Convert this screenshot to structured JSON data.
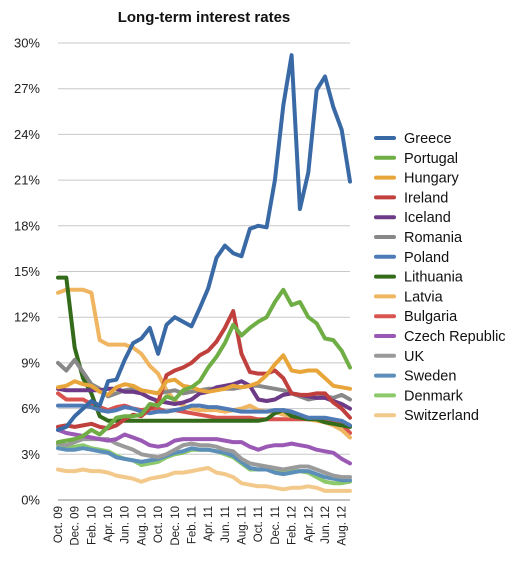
{
  "chart_data": {
    "type": "line",
    "title": "Long-term interest rates",
    "xlabel": "",
    "ylabel": "",
    "x": [
      "Oct. 09",
      "Nov. 09",
      "Dec. 09",
      "Jan. 10",
      "Feb. 10",
      "Mar. 10",
      "Apr. 10",
      "May 10",
      "Jun. 10",
      "Jul. 10",
      "Aug. 10",
      "Sep. 10",
      "Oct. 10",
      "Nov. 10",
      "Dec. 10",
      "Jan. 11",
      "Feb. 11",
      "Mar. 11",
      "Apr. 11",
      "May 11",
      "Jun. 11",
      "Jul. 11",
      "Aug. 11",
      "Sep. 11",
      "Oct. 11",
      "Nov. 11",
      "Dec. 11",
      "Jan. 12",
      "Feb. 12",
      "Mar. 12",
      "Apr. 12",
      "May 12",
      "Jun. 12",
      "Jul. 12",
      "Aug. 12",
      "Sep. 12"
    ],
    "x_tick_labels": [
      "Oct. 09",
      "Dec. 09",
      "Feb. 10",
      "Apr. 10",
      "Jun. 10",
      "Aug. 10",
      "Oct. 10",
      "Dec. 10",
      "Feb. 11",
      "Apr. 11",
      "Jun. 11",
      "Aug. 11",
      "Oct. 11",
      "Dec. 11",
      "Feb. 12",
      "Apr. 12",
      "Jun. 12",
      "Aug. 12"
    ],
    "y_tick_labels": [
      "0%",
      "3%",
      "6%",
      "9%",
      "12%",
      "15%",
      "18%",
      "21%",
      "24%",
      "27%",
      "30%"
    ],
    "ylim": [
      0,
      30
    ],
    "grid": "horizontal",
    "legend_position": "right",
    "series": [
      {
        "name": "Greece",
        "color": "#3a6aa6",
        "values": [
          4.6,
          4.8,
          5.5,
          6.0,
          6.5,
          6.2,
          7.8,
          7.9,
          9.2,
          10.3,
          10.6,
          11.3,
          9.6,
          11.5,
          12.0,
          11.7,
          11.4,
          12.6,
          13.9,
          15.9,
          16.7,
          16.2,
          16.0,
          17.8,
          18.0,
          17.9,
          21.0,
          25.9,
          29.2,
          19.1,
          21.5,
          26.9,
          27.8,
          25.8,
          24.3,
          20.9
        ]
      },
      {
        "name": "Portugal",
        "color": "#6fad45",
        "values": [
          3.8,
          3.9,
          4.0,
          4.2,
          4.6,
          4.3,
          4.8,
          5.4,
          5.5,
          5.5,
          5.6,
          6.3,
          6.2,
          6.8,
          6.6,
          7.2,
          7.4,
          7.8,
          8.7,
          9.4,
          10.3,
          11.5,
          10.8,
          11.3,
          11.7,
          12.0,
          13.0,
          13.8,
          12.8,
          13.0,
          12.0,
          11.6,
          10.6,
          10.5,
          9.8,
          8.7
        ]
      },
      {
        "name": "Hungary",
        "color": "#e8a53a",
        "values": [
          7.4,
          7.5,
          7.8,
          7.6,
          7.5,
          7.1,
          6.9,
          7.4,
          7.6,
          7.5,
          7.2,
          7.1,
          7.0,
          7.8,
          7.9,
          7.5,
          7.4,
          7.2,
          7.1,
          7.2,
          7.3,
          7.5,
          7.4,
          7.5,
          7.7,
          8.2,
          8.9,
          9.5,
          8.5,
          8.4,
          8.5,
          8.5,
          8.0,
          7.5,
          7.4,
          7.3
        ]
      },
      {
        "name": "Ireland",
        "color": "#c0403d",
        "values": [
          4.8,
          4.9,
          4.8,
          4.9,
          5.0,
          4.8,
          4.7,
          4.9,
          5.3,
          5.6,
          5.5,
          6.0,
          6.4,
          8.2,
          8.5,
          8.7,
          9.0,
          9.5,
          9.8,
          10.4,
          11.3,
          12.4,
          9.6,
          8.4,
          8.3,
          8.3,
          8.5,
          8.0,
          7.0,
          6.9,
          6.9,
          7.0,
          7.0,
          6.4,
          6.0,
          5.4
        ]
      },
      {
        "name": "Iceland",
        "color": "#6c3a87",
        "values": [
          7.3,
          7.2,
          7.2,
          7.2,
          7.2,
          7.2,
          7.3,
          7.3,
          7.1,
          7.1,
          7.0,
          6.7,
          6.5,
          6.4,
          6.3,
          6.4,
          6.6,
          7.0,
          7.1,
          7.4,
          7.5,
          7.6,
          7.8,
          7.5,
          6.6,
          6.5,
          6.6,
          6.9,
          7.0,
          6.9,
          6.8,
          6.7,
          6.7,
          6.5,
          6.3,
          6.0
        ]
      },
      {
        "name": "Romania",
        "color": "#888888",
        "values": [
          9.0,
          8.5,
          9.2,
          8.4,
          7.6,
          7.3,
          6.8,
          7.0,
          7.2,
          7.3,
          7.2,
          7.1,
          7.0,
          7.1,
          7.2,
          7.0,
          7.1,
          7.2,
          7.3,
          7.3,
          7.3,
          7.3,
          7.4,
          7.5,
          7.5,
          7.4,
          7.3,
          7.2,
          7.0,
          6.8,
          6.6,
          6.7,
          6.8,
          6.7,
          6.9,
          6.6
        ]
      },
      {
        "name": "Poland",
        "color": "#4e7bb6",
        "values": [
          6.2,
          6.2,
          6.2,
          6.2,
          6.1,
          5.9,
          5.8,
          5.9,
          6.1,
          6.0,
          5.8,
          5.7,
          5.8,
          5.8,
          5.9,
          6.0,
          6.2,
          6.2,
          6.1,
          6.1,
          6.0,
          5.9,
          5.8,
          5.8,
          5.8,
          5.8,
          5.9,
          5.9,
          5.8,
          5.6,
          5.4,
          5.4,
          5.4,
          5.3,
          5.2,
          4.9
        ]
      },
      {
        "name": "Lithuania",
        "color": "#336b1a",
        "values": [
          14.6,
          14.6,
          10.0,
          8.0,
          7.0,
          5.5,
          5.2,
          5.2,
          5.2,
          5.2,
          5.2,
          5.2,
          5.2,
          5.2,
          5.2,
          5.2,
          5.2,
          5.2,
          5.2,
          5.2,
          5.2,
          5.2,
          5.2,
          5.2,
          5.2,
          5.3,
          5.7,
          5.9,
          5.5,
          5.4,
          5.3,
          5.3,
          5.1,
          5.0,
          4.9,
          4.8
        ]
      },
      {
        "name": "Latvia",
        "color": "#f0b560",
        "values": [
          13.6,
          13.8,
          13.8,
          13.8,
          13.6,
          10.5,
          10.2,
          10.2,
          10.2,
          10.0,
          9.6,
          8.8,
          8.3,
          7.2,
          6.5,
          6.2,
          6.0,
          5.9,
          5.9,
          5.9,
          5.8,
          5.9,
          6.0,
          6.2,
          5.9,
          5.8,
          5.8,
          5.6,
          5.5,
          5.5,
          5.3,
          5.2,
          5.1,
          4.9,
          4.6,
          4.1
        ]
      },
      {
        "name": "Bulgaria",
        "color": "#d9534f",
        "values": [
          7.0,
          6.6,
          6.6,
          6.6,
          6.3,
          6.1,
          5.9,
          6.1,
          6.2,
          6.0,
          5.9,
          6.0,
          6.0,
          5.8,
          5.9,
          5.8,
          5.7,
          5.6,
          5.5,
          5.4,
          5.4,
          5.4,
          5.4,
          5.4,
          5.3,
          5.3,
          5.3,
          5.3,
          5.3,
          5.3,
          5.3,
          5.3,
          5.3,
          5.2,
          5.0,
          4.4
        ]
      },
      {
        "name": "Czech Republic",
        "color": "#9b59b6",
        "values": [
          4.6,
          4.4,
          4.3,
          4.2,
          4.1,
          4.0,
          3.9,
          4.0,
          4.3,
          4.1,
          3.9,
          3.6,
          3.5,
          3.6,
          3.9,
          4.0,
          4.0,
          4.0,
          4.0,
          4.0,
          3.9,
          3.8,
          3.8,
          3.5,
          3.3,
          3.5,
          3.6,
          3.6,
          3.7,
          3.6,
          3.5,
          3.3,
          3.2,
          3.1,
          2.7,
          2.4
        ]
      },
      {
        "name": "UK",
        "color": "#9a9a9a",
        "values": [
          3.7,
          3.6,
          3.8,
          4.0,
          4.0,
          4.0,
          4.0,
          3.7,
          3.5,
          3.3,
          3.0,
          2.9,
          2.8,
          3.0,
          3.3,
          3.6,
          3.7,
          3.6,
          3.6,
          3.5,
          3.3,
          3.2,
          2.7,
          2.4,
          2.3,
          2.2,
          2.1,
          2.0,
          2.1,
          2.2,
          2.2,
          2.0,
          1.8,
          1.6,
          1.5,
          1.5
        ]
      },
      {
        "name": "Sweden",
        "color": "#5b8fb9",
        "values": [
          3.4,
          3.3,
          3.3,
          3.4,
          3.3,
          3.2,
          3.1,
          2.8,
          2.7,
          2.6,
          2.5,
          2.6,
          2.7,
          2.9,
          3.1,
          3.2,
          3.4,
          3.3,
          3.3,
          3.2,
          3.1,
          2.9,
          2.5,
          2.1,
          2.0,
          2.0,
          1.8,
          1.7,
          1.8,
          1.9,
          1.9,
          1.7,
          1.5,
          1.4,
          1.3,
          1.3
        ]
      },
      {
        "name": "Denmark",
        "color": "#8cc96b",
        "values": [
          3.6,
          3.5,
          3.5,
          3.6,
          3.4,
          3.3,
          3.2,
          2.9,
          2.7,
          2.6,
          2.3,
          2.4,
          2.5,
          2.8,
          3.0,
          3.1,
          3.3,
          3.3,
          3.3,
          3.2,
          3.0,
          2.8,
          2.4,
          2.0,
          2.0,
          2.1,
          1.9,
          1.8,
          1.9,
          1.9,
          1.8,
          1.5,
          1.2,
          1.1,
          1.1,
          1.2
        ]
      },
      {
        "name": "Switzerland",
        "color": "#f3c98b",
        "values": [
          2.0,
          1.9,
          1.9,
          2.0,
          1.9,
          1.9,
          1.8,
          1.6,
          1.5,
          1.4,
          1.2,
          1.4,
          1.5,
          1.6,
          1.8,
          1.8,
          1.9,
          2.0,
          2.1,
          1.8,
          1.7,
          1.5,
          1.1,
          1.0,
          0.9,
          0.9,
          0.8,
          0.7,
          0.8,
          0.8,
          0.9,
          0.8,
          0.6,
          0.6,
          0.6,
          0.6
        ]
      }
    ]
  }
}
